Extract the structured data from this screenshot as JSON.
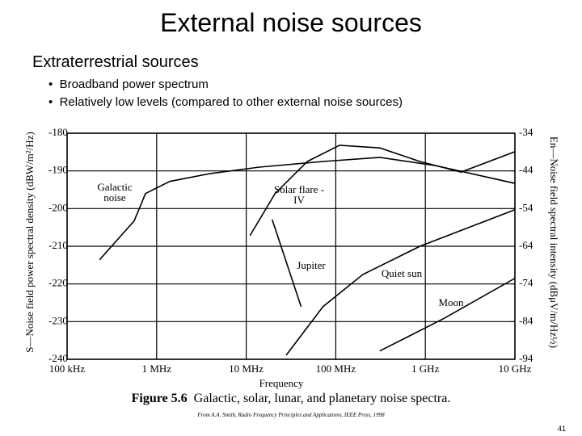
{
  "slide": {
    "title": "External noise sources",
    "subtitle": "Extraterrestrial sources",
    "bullets": [
      "Broadband power spectrum",
      "Relatively low levels (compared to other external noise sources)"
    ],
    "figure_label": "Figure 5.6",
    "caption": "Galactic, solar, lunar, and planetary noise spectra.",
    "source": "From A.A. Smith, Radio Frequency Principles and Applications, IEEE Press, 1998",
    "page_number": "41"
  },
  "chart_data": {
    "type": "line",
    "xscale": "log",
    "grid": true,
    "x_label": "Frequency",
    "y_label": "S—Noise field power spectral density (dBW/m²/Hz)",
    "y2_label": "En—Noise field spectral intensity (dBμV/m/Hz½)",
    "xlim": [
      100000,
      10000000000
    ],
    "xticks": [
      {
        "value": 100000,
        "label": "100 kHz"
      },
      {
        "value": 1000000,
        "label": "1 MHz"
      },
      {
        "value": 10000000,
        "label": "10 MHz"
      },
      {
        "value": 100000000,
        "label": "100 MHz"
      },
      {
        "value": 1000000000,
        "label": "1 GHz"
      },
      {
        "value": 10000000000,
        "label": "10 GHz"
      }
    ],
    "ylim": [
      -240,
      -180
    ],
    "yticks": [
      -180,
      -190,
      -200,
      -210,
      -220,
      -230,
      -240
    ],
    "y2lim": [
      -94,
      -34
    ],
    "y2ticks": [
      -34,
      -44,
      -54,
      -64,
      -74,
      -84,
      -94
    ],
    "series": [
      {
        "name": "Galactic noise",
        "color": "#000000",
        "x": [
          230000,
          560000,
          750000,
          1400000,
          4000000,
          14000000,
          72000000,
          310000000,
          1300000000,
          10000000000
        ],
        "values": [
          -213.6,
          -203.3,
          -196,
          -192.8,
          -190.7,
          -189,
          -187.5,
          -186.4,
          -188.6,
          -193.3
        ]
      },
      {
        "name": "Solar flare - IV",
        "color": "#000000",
        "x": [
          11000000,
          21000000,
          48000000,
          110000000,
          310000000,
          870000000,
          2500000000,
          10000000000
        ],
        "values": [
          -207.2,
          -196,
          -187.5,
          -183.2,
          -183.9,
          -187.5,
          -190.3,
          -184.9
        ]
      },
      {
        "name": "Jupiter",
        "color": "#000000",
        "x": [
          19500000,
          41000000
        ],
        "values": [
          -202.9,
          -226
        ]
      },
      {
        "name": "Quiet sun",
        "color": "#000000",
        "x": [
          28000000,
          72000000,
          200000000,
          870000000,
          10000000000
        ],
        "values": [
          -238.9,
          -226,
          -217.5,
          -210,
          -200.3
        ]
      },
      {
        "name": "Moon",
        "color": "#000000",
        "x": [
          310000000,
          1600000000,
          10000000000
        ],
        "values": [
          -237.8,
          -229.2,
          -218.5
        ]
      }
    ]
  }
}
